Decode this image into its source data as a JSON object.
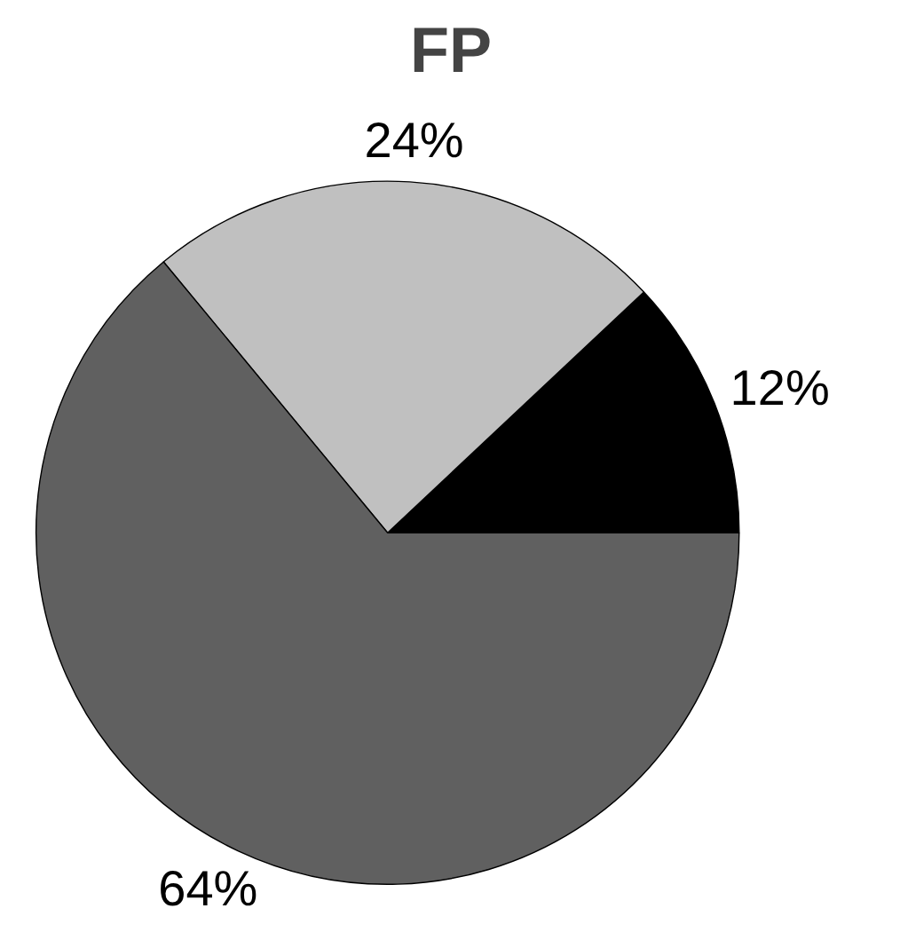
{
  "chart_data": {
    "type": "pie",
    "title": "FP",
    "categories": [
      null,
      null,
      null
    ],
    "values": [
      12,
      24,
      64
    ],
    "colors": [
      "#000000",
      "#c0c0c0",
      "#606060"
    ],
    "value_labels": [
      "12%",
      "24%",
      "64%"
    ]
  }
}
